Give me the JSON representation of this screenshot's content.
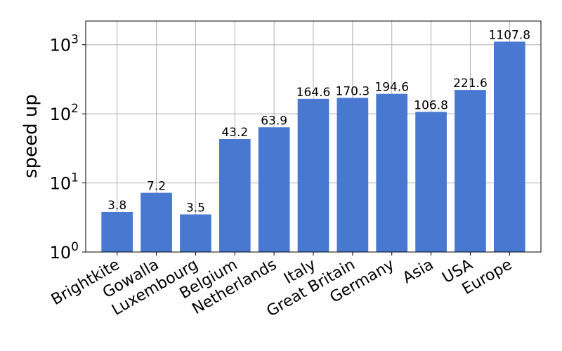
{
  "chart_data": {
    "type": "bar",
    "categories": [
      "Brightkite",
      "Gowalla",
      "Luxembourg",
      "Belgium",
      "Netherlands",
      "Italy",
      "Great Britain",
      "Germany",
      "Asia",
      "USA",
      "Europe"
    ],
    "values": [
      3.8,
      7.2,
      3.5,
      43.2,
      63.9,
      164.6,
      170.3,
      194.6,
      106.8,
      221.6,
      1107.8
    ],
    "data_labels": [
      "3.8",
      "7.2",
      "3.5",
      "43.2",
      "63.9",
      "164.6",
      "170.3",
      "194.6",
      "106.8",
      "221.6",
      "1107.8"
    ],
    "title": "",
    "xlabel": "",
    "ylabel": "speed up",
    "yscale": "log",
    "ylim": [
      1,
      2200
    ],
    "yticks": [
      1,
      10,
      100,
      1000
    ],
    "ytick_labels": [
      {
        "base": "10",
        "exp": "0"
      },
      {
        "base": "10",
        "exp": "1"
      },
      {
        "base": "10",
        "exp": "2"
      },
      {
        "base": "10",
        "exp": "3"
      }
    ],
    "grid": true,
    "bar_color": "#4878d0"
  }
}
